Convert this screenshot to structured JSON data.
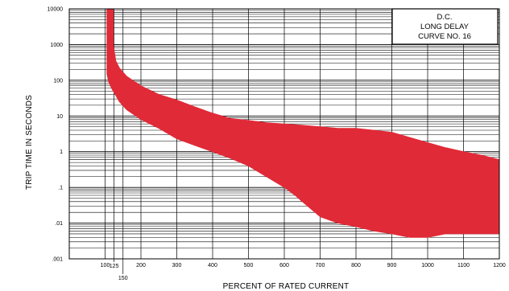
{
  "chart_data": {
    "type": "area",
    "title_box": [
      "D.C.",
      "LONG DELAY",
      "CURVE NO. 16"
    ],
    "xlabel": "PERCENT OF RATED CURRENT",
    "ylabel": "TRIP TIME IN SECONDS",
    "xlim": [
      0,
      1200
    ],
    "ylim": [
      0.001,
      10000
    ],
    "yscale": "log",
    "grid": true,
    "x_ticks": [
      100,
      200,
      300,
      400,
      500,
      600,
      700,
      800,
      900,
      1000,
      1100,
      1200
    ],
    "x_tick_labels": [
      "100",
      "200",
      "300",
      "400",
      "500",
      "600",
      "700",
      "800",
      "900",
      "1000",
      "1100",
      "1200"
    ],
    "x_extra_ticks": [
      125,
      150
    ],
    "x_extra_tick_labels": [
      "125",
      "150"
    ],
    "y_ticks": [
      0.001,
      0.01,
      0.1,
      1,
      10,
      100,
      1000,
      10000
    ],
    "y_tick_labels": [
      ".001",
      ".01",
      ".1",
      "1",
      "10",
      "100",
      "1000",
      "10000"
    ],
    "band_color": "#e02a37",
    "series": [
      {
        "role": "upper",
        "x": [
          123,
          123,
          130,
          140,
          160,
          200,
          250,
          300,
          350,
          400,
          450,
          500,
          550,
          600,
          650,
          700,
          750,
          800,
          850,
          900,
          950,
          1000,
          1050,
          1100,
          1150,
          1200
        ],
        "y": [
          10000,
          1000,
          350,
          220,
          130,
          70,
          40,
          28,
          18,
          12,
          8.5,
          7.5,
          6.5,
          6,
          5.5,
          5,
          4.5,
          4.5,
          4,
          3.5,
          2.5,
          1.8,
          1.3,
          1,
          0.8,
          0.6
        ]
      },
      {
        "role": "lower",
        "x": [
          105,
          105,
          110,
          120,
          140,
          160,
          200,
          250,
          300,
          350,
          400,
          450,
          500,
          550,
          600,
          630,
          650,
          700,
          750,
          800,
          850,
          900,
          950,
          1000,
          1050,
          1100,
          1150,
          1200
        ],
        "y": [
          10000,
          150,
          90,
          55,
          25,
          15,
          8,
          4.5,
          2.3,
          1.5,
          1,
          0.65,
          0.4,
          0.2,
          0.1,
          0.06,
          0.04,
          0.015,
          0.01,
          0.008,
          0.006,
          0.005,
          0.004,
          0.004,
          0.005,
          0.005,
          0.005,
          0.005
        ]
      }
    ]
  }
}
